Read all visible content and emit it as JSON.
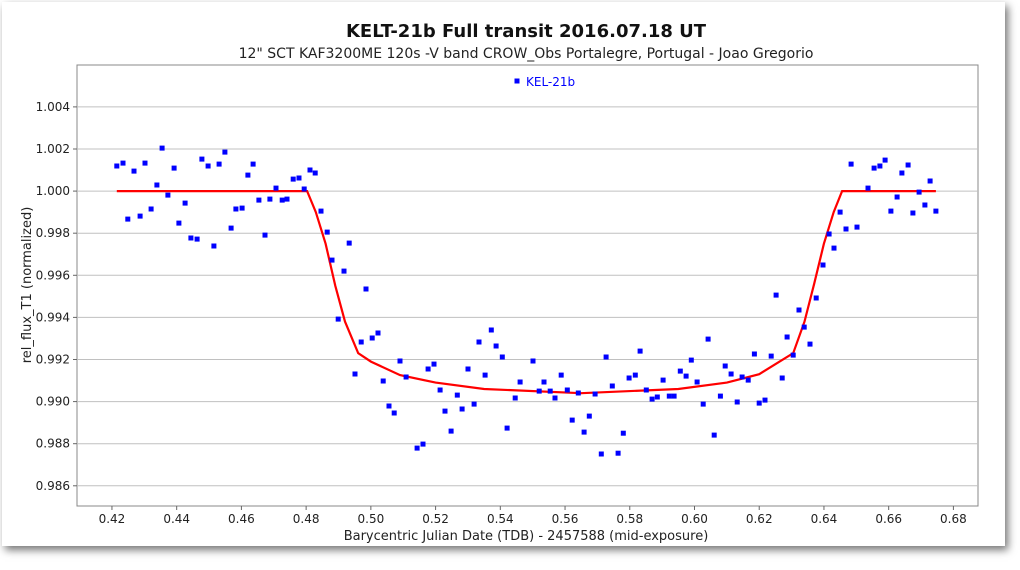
{
  "chart_data": {
    "type": "scatter",
    "title": "KELT-21b Full transit  2016.07.18 UT",
    "subtitle": "12\" SCT KAF3200ME 120s -V band CROW_Obs Portalegre, Portugal - Joao Gregorio",
    "xlabel": "Barycentric Julian Date (TDB) - 2457588 (mid-exposure)",
    "ylabel": "rel_flux_T1 (normalized)",
    "xlim": [
      0.4092,
      0.6876
    ],
    "ylim": [
      0.98504,
      1.00599
    ],
    "xticks": [
      "0.42",
      "0.44",
      "0.46",
      "0.48",
      "0.50",
      "0.52",
      "0.54",
      "0.56",
      "0.58",
      "0.60",
      "0.62",
      "0.64",
      "0.66",
      "0.68"
    ],
    "yticks": [
      "1.004",
      "1.002",
      "1.000",
      "0.998",
      "0.996",
      "0.994",
      "0.992",
      "0.990",
      "0.988",
      "0.986"
    ],
    "grid": "horizontal",
    "legend": {
      "position": "top-center",
      "entries": [
        "KEL-21b"
      ]
    },
    "colors": {
      "points": "#0000ff",
      "model": "#ff0000",
      "grid": "#c0c0c0"
    },
    "series": [
      {
        "name": "KEL-21b",
        "x": [
          0.4215,
          0.4234,
          0.4268,
          0.4249,
          0.4287,
          0.4302,
          0.4321,
          0.4339,
          0.4355,
          0.4373,
          0.4392,
          0.4407,
          0.4426,
          0.4444,
          0.4463,
          0.4478,
          0.4497,
          0.4515,
          0.4531,
          0.4549,
          0.4568,
          0.4583,
          0.4602,
          0.462,
          0.4636,
          0.4654,
          0.4673,
          0.4688,
          0.4707,
          0.4726,
          0.4741,
          0.476,
          0.4778,
          0.4794,
          0.4812,
          0.4828,
          0.4846,
          0.4865,
          0.488,
          0.4899,
          0.4917,
          0.4933,
          0.4951,
          0.497,
          0.4985,
          0.5004,
          0.5022,
          0.5038,
          0.5056,
          0.5072,
          0.509,
          0.5109,
          0.5143,
          0.5161,
          0.5177,
          0.5195,
          0.5214,
          0.5229,
          0.5248,
          0.5267,
          0.5282,
          0.53,
          0.5319,
          0.5334,
          0.5353,
          0.5372,
          0.5387,
          0.5406,
          0.5421,
          0.5446,
          0.5461,
          0.5501,
          0.552,
          0.5535,
          0.5554,
          0.5569,
          0.5588,
          0.5607,
          0.5622,
          0.5641,
          0.5659,
          0.5675,
          0.5693,
          0.5712,
          0.5727,
          0.5746,
          0.5764,
          0.578,
          0.5798,
          0.5817,
          0.5832,
          0.5851,
          0.5869,
          0.5885,
          0.5903,
          0.5922,
          0.5937,
          0.5956,
          0.5974,
          0.599,
          0.6008,
          0.6027,
          0.6042,
          0.6061,
          0.608,
          0.6095,
          0.6113,
          0.6132,
          0.6147,
          0.6166,
          0.6185,
          0.62,
          0.6218,
          0.6237,
          0.6252,
          0.6271,
          0.6286,
          0.6305,
          0.6323,
          0.6339,
          0.6357,
          0.6376,
          0.6397,
          0.6416,
          0.6431,
          0.645,
          0.6468,
          0.6484,
          0.6502,
          0.6536,
          0.6555,
          0.6573,
          0.6589,
          0.6607,
          0.6626,
          0.6641,
          0.666,
          0.6675,
          0.6694,
          0.6712,
          0.6728,
          0.6746
        ],
        "y": [
          1.00119,
          1.00133,
          1.00095,
          0.99867,
          0.99881,
          1.00133,
          0.99915,
          1.00029,
          1.00204,
          0.99981,
          1.00109,
          0.99848,
          0.99943,
          0.99777,
          0.99772,
          1.00152,
          1.00119,
          0.99739,
          1.00128,
          1.00185,
          0.99824,
          0.99915,
          0.99919,
          1.00076,
          1.00128,
          0.99957,
          0.99791,
          0.99962,
          1.00014,
          0.99957,
          0.99962,
          1.00057,
          1.00062,
          1.0001,
          1.001,
          1.00086,
          0.99905,
          0.99805,
          0.99672,
          0.99392,
          0.9962,
          0.99753,
          0.99131,
          0.99283,
          0.99535,
          0.99302,
          0.99326,
          0.99098,
          0.98979,
          0.98946,
          0.99193,
          0.99117,
          0.98779,
          0.98798,
          0.99155,
          0.99178,
          0.99055,
          0.98955,
          0.9886,
          0.99031,
          0.98965,
          0.99155,
          0.98988,
          0.99283,
          0.99126,
          0.9934,
          0.99264,
          0.99212,
          0.98874,
          0.99017,
          0.99093,
          0.99193,
          0.9905,
          0.99093,
          0.9905,
          0.99017,
          0.99126,
          0.99055,
          0.98912,
          0.99041,
          0.98855,
          0.98931,
          0.99036,
          0.98751,
          0.99212,
          0.99074,
          0.98755,
          0.9885,
          0.99112,
          0.99126,
          0.9924,
          0.99055,
          0.99012,
          0.99022,
          0.99102,
          0.99026,
          0.99026,
          0.99145,
          0.99121,
          0.99197,
          0.99093,
          0.98988,
          0.99297,
          0.98841,
          0.99026,
          0.99169,
          0.99131,
          0.98998,
          0.99117,
          0.99102,
          0.99226,
          0.98993,
          0.99007,
          0.99216,
          0.99506,
          0.99112,
          0.99307,
          0.99221,
          0.99435,
          0.99354,
          0.99273,
          0.99492,
          0.99649,
          0.99796,
          0.99729,
          0.999,
          0.9982,
          1.00128,
          0.99829,
          1.00014,
          1.00109,
          1.00119,
          1.00147,
          0.99905,
          0.99972,
          1.00086,
          1.00124,
          0.99896,
          0.99995,
          0.99934,
          1.00048,
          0.99905
        ]
      },
      {
        "name": "model",
        "x": [
          0.4215,
          0.4803,
          0.483,
          0.486,
          0.489,
          0.492,
          0.4961,
          0.5,
          0.509,
          0.52,
          0.535,
          0.565,
          0.595,
          0.61,
          0.62,
          0.6305,
          0.634,
          0.637,
          0.64,
          0.643,
          0.6456,
          0.6746
        ],
        "y": [
          1.0,
          1.0,
          0.999,
          0.9975,
          0.9955,
          0.9938,
          0.9923,
          0.9919,
          0.99126,
          0.9909,
          0.9906,
          0.9904,
          0.9906,
          0.9909,
          0.9913,
          0.9923,
          0.9938,
          0.9956,
          0.9975,
          0.999,
          1.0,
          1.0
        ]
      }
    ]
  }
}
